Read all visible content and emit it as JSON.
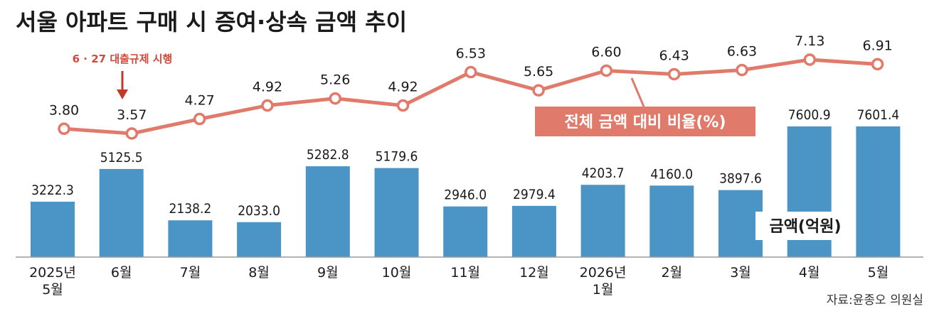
{
  "chart_data": {
    "type": "bar+line",
    "title": "서울 아파트 구매 시 증여·상속 금액 추이",
    "categories": [
      "2025년\n5월",
      "6월",
      "7월",
      "8월",
      "9월",
      "10월",
      "11월",
      "12월",
      "2026년\n1월",
      "2월",
      "3월",
      "4월",
      "5월"
    ],
    "bar_series": {
      "name": "금액(억원)",
      "values": [
        3222.3,
        5125.5,
        2138.2,
        2033.0,
        5282.8,
        5179.6,
        2946.0,
        2979.4,
        4203.7,
        4160.0,
        3897.6,
        7600.9,
        7601.4
      ],
      "labels": [
        "3222.3",
        "5125.5",
        "2138.2",
        "2033.0",
        "5282.8",
        "5179.6",
        "2946.0",
        "2979.4",
        "4203.7",
        "4160.0",
        "3897.6",
        "7600.9",
        "7601.4"
      ],
      "color": "#4a95c6"
    },
    "line_series": {
      "name": "전체 금액 대비 비율(%)",
      "values": [
        3.8,
        3.57,
        4.27,
        4.92,
        5.26,
        4.92,
        6.53,
        5.65,
        6.6,
        6.43,
        6.63,
        7.13,
        6.91
      ],
      "labels": [
        "3.80",
        "3.57",
        "4.27",
        "4.92",
        "5.26",
        "4.92",
        "6.53",
        "5.65",
        "6.60",
        "6.43",
        "6.63",
        "7.13",
        "6.91"
      ],
      "color": "#e07a6a"
    },
    "annotation": {
      "text": "6 · 27 대출규제 시행",
      "category_index": 1
    },
    "source": "자료:윤종오 의원실"
  }
}
